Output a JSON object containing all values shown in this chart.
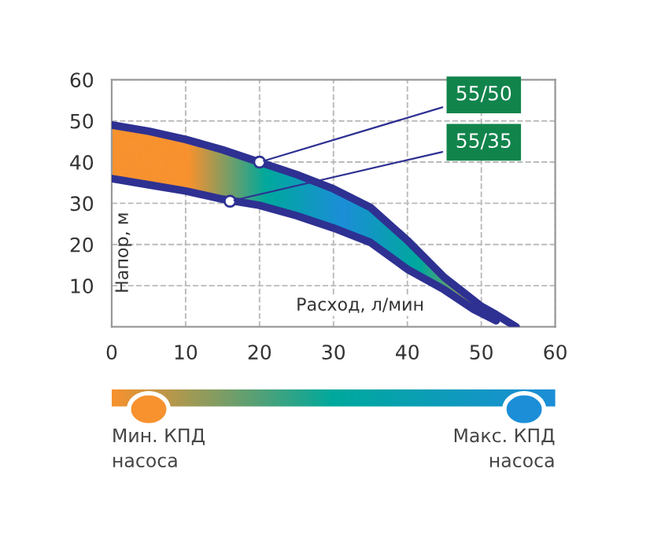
{
  "chart_data": {
    "type": "line",
    "xlabel": "Расход, л/мин",
    "ylabel": "Напор, м",
    "xlim": [
      0,
      60
    ],
    "ylim": [
      0,
      60
    ],
    "xticks": [
      0,
      10,
      20,
      30,
      40,
      50,
      60
    ],
    "yticks": [
      10,
      20,
      30,
      40,
      50,
      60
    ],
    "grid": true,
    "line_style": "solid",
    "marker": "none",
    "series": [
      {
        "color": "#2e3192",
        "x": [
          0,
          5,
          10,
          15,
          20,
          25,
          30,
          35,
          40,
          45,
          50,
          52,
          54.7
        ],
        "values": [
          49,
          47.5,
          45.5,
          43,
          40,
          37,
          33.5,
          29,
          21,
          12,
          5,
          3,
          0
        ]
      },
      {
        "color": "#2e3192",
        "x": [
          0,
          5,
          10,
          15,
          20,
          25,
          30,
          35,
          40,
          45,
          49,
          52
        ],
        "values": [
          36,
          34.5,
          33,
          31,
          29.5,
          27,
          24,
          20.5,
          14,
          9,
          4.2,
          1.5
        ]
      }
    ],
    "annotations": [
      {
        "text": "55/50",
        "x": 20,
        "y": 40
      },
      {
        "text": "55/35",
        "x": 16,
        "y": 30.5
      },
      "Мин. КПД\nнасоса",
      "Макс. КПД\nнасоса"
    ]
  }
}
